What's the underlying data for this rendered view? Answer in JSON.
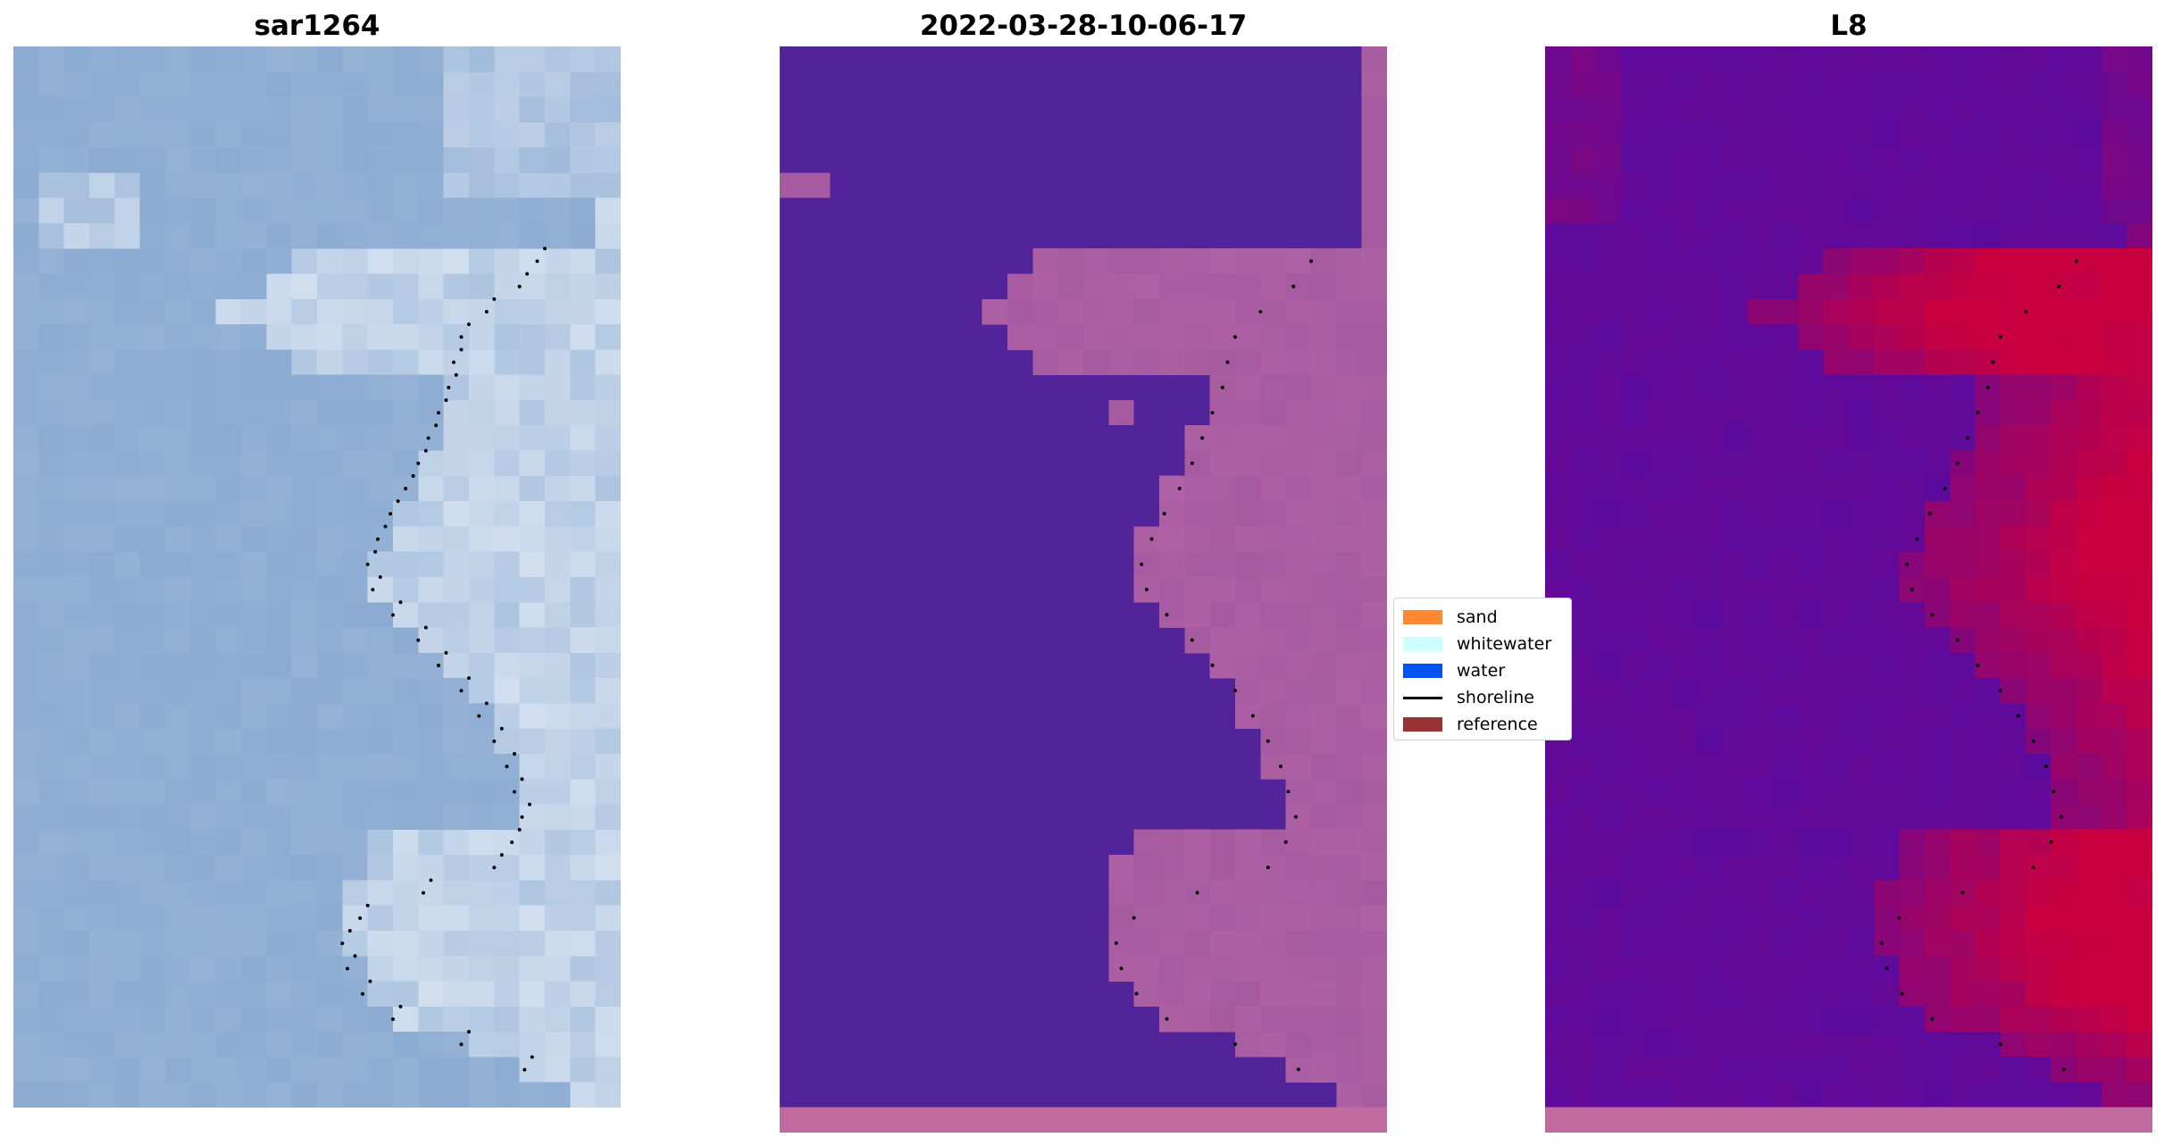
{
  "figure": {
    "panels": [
      {
        "title": "sar1264"
      },
      {
        "title": "2022-03-28-10-06-17"
      },
      {
        "title": "L8"
      }
    ],
    "legend": {
      "items": [
        {
          "label": "sand",
          "type": "patch",
          "color": "#ff8833"
        },
        {
          "label": "whitewater",
          "type": "patch",
          "color": "#ccffff"
        },
        {
          "label": "water",
          "type": "patch",
          "color": "#0055ee"
        },
        {
          "label": "shoreline",
          "type": "line",
          "color": "#000000"
        },
        {
          "label": "reference",
          "type": "patch",
          "color": "#993333"
        }
      ]
    },
    "colors": {
      "rgb_water": "#88a8d0",
      "rgb_whitewater": "#dde8f4",
      "class_water": "#522399",
      "class_sand": "#a65a9f",
      "index_low": "#5c0a9e",
      "index_high": "#c80040"
    }
  }
}
